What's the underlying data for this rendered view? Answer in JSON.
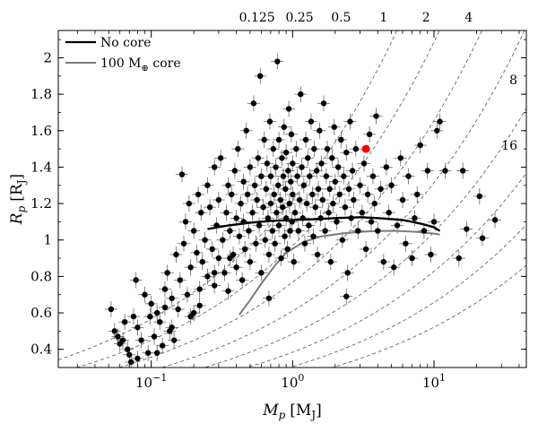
{
  "chart_data": {
    "type": "scatter",
    "xlabel": {
      "symbol": "M",
      "sub": "p",
      "unit": "[M",
      "unit_sub": "J",
      "unit_end": "]"
    },
    "ylabel": {
      "symbol": "R",
      "sub": "p",
      "unit": "[R",
      "unit_sub": "J",
      "unit_end": "]"
    },
    "x_scale": "log",
    "xlim": [
      0.022,
      45
    ],
    "ylim": [
      0.3,
      2.15
    ],
    "x_ticks": [
      {
        "value": 0.1,
        "base": "10",
        "exp": "−1"
      },
      {
        "value": 1,
        "base": "10",
        "exp": "0"
      },
      {
        "value": 10,
        "base": "10",
        "exp": "1"
      }
    ],
    "y_ticks": [
      0.4,
      0.6,
      0.8,
      1,
      1.2,
      1.4,
      1.6,
      1.8,
      2
    ],
    "y_tick_labels": [
      "0.4",
      "0.6",
      "0.8",
      "1",
      "1.2",
      "1.4",
      "1.6",
      "1.8",
      "2"
    ],
    "grid": false,
    "legend": {
      "position": "top-left",
      "entries": [
        {
          "label": "No core",
          "color": "#000000"
        },
        {
          "label_main": "100 M",
          "label_sub": "⊕",
          "label_end": " core",
          "color": "#7a7a7a"
        }
      ]
    },
    "density_curves": [
      {
        "label": "0.125",
        "k": 0.55,
        "label_pos": "top",
        "label_x": 0.56
      },
      {
        "label": "0.25",
        "k": 1.1,
        "label_pos": "top",
        "label_x": 1.12
      },
      {
        "label": "0.5",
        "k": 2.2,
        "label_pos": "top",
        "label_x": 2.2
      },
      {
        "label": "1",
        "k": 4.4,
        "label_pos": "top",
        "label_x": 4.4
      },
      {
        "label": "2",
        "k": 8.8,
        "label_pos": "top",
        "label_x": 8.8
      },
      {
        "label": "4",
        "k": 17.6,
        "label_pos": "top",
        "label_x": 17.6
      },
      {
        "label": "8",
        "k": 35.2,
        "label_pos": "right",
        "label_y": 1.88
      },
      {
        "label": "16",
        "k": 70.4,
        "label_pos": "right",
        "label_y": 1.52
      }
    ],
    "model_curves": [
      {
        "name": "No core",
        "color": "#000000",
        "x": [
          0.25,
          0.35,
          0.5,
          0.7,
          1.0,
          1.5,
          2.0,
          3.0,
          4.0,
          5.0,
          6.0,
          7.0,
          8.0,
          9.0,
          10.0,
          11.0
        ],
        "y": [
          1.06,
          1.08,
          1.095,
          1.105,
          1.11,
          1.115,
          1.12,
          1.125,
          1.12,
          1.115,
          1.11,
          1.1,
          1.09,
          1.08,
          1.07,
          1.05
        ]
      },
      {
        "name": "100 M⊕ core",
        "color": "#7a7a7a",
        "x": [
          0.42,
          0.5,
          0.6,
          0.75,
          0.9,
          1.2,
          1.6,
          2.2,
          3.0,
          4.0,
          5.5,
          7.5,
          10.0,
          11.0
        ],
        "y": [
          0.59,
          0.67,
          0.76,
          0.86,
          0.93,
          0.99,
          1.02,
          1.035,
          1.045,
          1.05,
          1.05,
          1.045,
          1.035,
          1.03
        ]
      }
    ],
    "points": [
      [
        0.052,
        0.62
      ],
      [
        0.055,
        0.5
      ],
      [
        0.058,
        0.47
      ],
      [
        0.06,
        0.43
      ],
      [
        0.065,
        0.55
      ],
      [
        0.068,
        0.4
      ],
      [
        0.07,
        0.37
      ],
      [
        0.072,
        0.33
      ],
      [
        0.075,
        0.58
      ],
      [
        0.078,
        0.78
      ],
      [
        0.08,
        0.52
      ],
      [
        0.085,
        0.45
      ],
      [
        0.09,
        0.7
      ],
      [
        0.095,
        0.38
      ],
      [
        0.1,
        0.65
      ],
      [
        0.105,
        0.47
      ],
      [
        0.11,
        0.6
      ],
      [
        0.115,
        0.55
      ],
      [
        0.12,
        0.42
      ],
      [
        0.125,
        0.73
      ],
      [
        0.13,
        0.82
      ],
      [
        0.135,
        0.5
      ],
      [
        0.14,
        0.68
      ],
      [
        0.145,
        0.45
      ],
      [
        0.15,
        0.92
      ],
      [
        0.155,
        0.62
      ],
      [
        0.16,
        0.78
      ],
      [
        0.165,
        1.36
      ],
      [
        0.17,
        0.98
      ],
      [
        0.175,
        1.1
      ],
      [
        0.18,
        0.7
      ],
      [
        0.185,
        1.2
      ],
      [
        0.19,
        0.85
      ],
      [
        0.2,
        1.05
      ],
      [
        0.2,
        0.6
      ],
      [
        0.21,
        0.93
      ],
      [
        0.215,
        1.25
      ],
      [
        0.22,
        0.73
      ],
      [
        0.225,
        1.15
      ],
      [
        0.23,
        0.88
      ],
      [
        0.24,
        1.0
      ],
      [
        0.25,
        1.3
      ],
      [
        0.25,
        0.8
      ],
      [
        0.26,
        1.18
      ],
      [
        0.27,
        0.95
      ],
      [
        0.28,
        1.4
      ],
      [
        0.28,
        0.75
      ],
      [
        0.29,
        1.08
      ],
      [
        0.3,
        1.22
      ],
      [
        0.3,
        0.9
      ],
      [
        0.31,
        1.45
      ],
      [
        0.32,
        1.0
      ],
      [
        0.33,
        0.82
      ],
      [
        0.34,
        1.15
      ],
      [
        0.35,
        1.3
      ],
      [
        0.35,
        0.72
      ],
      [
        0.36,
        1.05
      ],
      [
        0.37,
        1.25
      ],
      [
        0.38,
        0.92
      ],
      [
        0.39,
        1.38
      ],
      [
        0.4,
        1.12
      ],
      [
        0.4,
        0.85
      ],
      [
        0.41,
        1.5
      ],
      [
        0.42,
        1.02
      ],
      [
        0.43,
        1.2
      ],
      [
        0.44,
        0.78
      ],
      [
        0.45,
        1.32
      ],
      [
        0.45,
        1.1
      ],
      [
        0.46,
        0.95
      ],
      [
        0.47,
        1.6
      ],
      [
        0.48,
        1.25
      ],
      [
        0.49,
        1.05
      ],
      [
        0.5,
        1.4
      ],
      [
        0.5,
        0.88
      ],
      [
        0.52,
        1.15
      ],
      [
        0.53,
        1.75
      ],
      [
        0.54,
        1.3
      ],
      [
        0.55,
        0.98
      ],
      [
        0.56,
        1.22
      ],
      [
        0.57,
        1.45
      ],
      [
        0.58,
        1.08
      ],
      [
        0.59,
        1.9
      ],
      [
        0.6,
        1.35
      ],
      [
        0.6,
        0.82
      ],
      [
        0.62,
        1.18
      ],
      [
        0.63,
        1.55
      ],
      [
        0.64,
        1.0
      ],
      [
        0.65,
        1.28
      ],
      [
        0.66,
        1.42
      ],
      [
        0.67,
        1.12
      ],
      [
        0.68,
        0.92
      ],
      [
        0.69,
        1.65
      ],
      [
        0.7,
        1.2
      ],
      [
        0.7,
        1.35
      ],
      [
        0.72,
        1.05
      ],
      [
        0.73,
        1.5
      ],
      [
        0.74,
        1.25
      ],
      [
        0.75,
        0.98
      ],
      [
        0.76,
        1.4
      ],
      [
        0.77,
        1.15
      ],
      [
        0.78,
        1.98
      ],
      [
        0.79,
        1.3
      ],
      [
        0.8,
        1.08
      ],
      [
        0.8,
        1.55
      ],
      [
        0.82,
        1.22
      ],
      [
        0.83,
        0.9
      ],
      [
        0.84,
        1.45
      ],
      [
        0.85,
        1.18
      ],
      [
        0.86,
        1.35
      ],
      [
        0.87,
        1.62
      ],
      [
        0.88,
        1.02
      ],
      [
        0.89,
        1.28
      ],
      [
        0.9,
        1.48
      ],
      [
        0.9,
        1.12
      ],
      [
        0.92,
        0.95
      ],
      [
        0.93,
        1.38
      ],
      [
        0.94,
        1.72
      ],
      [
        0.95,
        1.2
      ],
      [
        0.96,
        1.05
      ],
      [
        0.97,
        1.32
      ],
      [
        0.98,
        1.58
      ],
      [
        0.99,
        1.1
      ],
      [
        1.0,
        1.42
      ],
      [
        1.0,
        1.25
      ],
      [
        1.02,
        0.88
      ],
      [
        1.04,
        1.15
      ],
      [
        1.06,
        1.5
      ],
      [
        1.08,
        1.35
      ],
      [
        1.1,
        1.05
      ],
      [
        1.12,
        1.22
      ],
      [
        1.14,
        1.8
      ],
      [
        1.16,
        1.4
      ],
      [
        1.18,
        1.12
      ],
      [
        1.2,
        1.3
      ],
      [
        1.22,
        0.98
      ],
      [
        1.24,
        1.55
      ],
      [
        1.26,
        1.2
      ],
      [
        1.28,
        1.45
      ],
      [
        1.3,
        1.08
      ],
      [
        1.32,
        1.35
      ],
      [
        1.35,
        1.65
      ],
      [
        1.38,
        1.25
      ],
      [
        1.4,
        1.02
      ],
      [
        1.42,
        1.5
      ],
      [
        1.45,
        1.18
      ],
      [
        1.48,
        1.38
      ],
      [
        1.5,
        0.92
      ],
      [
        1.52,
        1.28
      ],
      [
        1.55,
        1.6
      ],
      [
        1.58,
        1.12
      ],
      [
        1.6,
        1.42
      ],
      [
        1.63,
        1.22
      ],
      [
        1.66,
        1.75
      ],
      [
        1.7,
        1.05
      ],
      [
        1.73,
        1.35
      ],
      [
        1.76,
        1.5
      ],
      [
        1.8,
        1.15
      ],
      [
        1.83,
        1.28
      ],
      [
        1.86,
        0.88
      ],
      [
        1.9,
        1.45
      ],
      [
        1.93,
        1.2
      ],
      [
        1.97,
        1.62
      ],
      [
        2.0,
        1.32
      ],
      [
        2.05,
        1.1
      ],
      [
        2.1,
        1.4
      ],
      [
        2.15,
        1.25
      ],
      [
        2.2,
        1.55
      ],
      [
        2.25,
        1.0
      ],
      [
        2.3,
        1.35
      ],
      [
        2.35,
        1.18
      ],
      [
        2.4,
        1.48
      ],
      [
        2.45,
        0.82
      ],
      [
        2.5,
        1.28
      ],
      [
        2.55,
        1.65
      ],
      [
        2.6,
        1.12
      ],
      [
        2.65,
        1.38
      ],
      [
        2.7,
        1.22
      ],
      [
        2.8,
        1.5
      ],
      [
        2.9,
        1.05
      ],
      [
        3.0,
        1.3
      ],
      [
        3.1,
        1.15
      ],
      [
        3.2,
        1.42
      ],
      [
        3.3,
        0.95
      ],
      [
        3.4,
        1.25
      ],
      [
        3.5,
        1.58
      ],
      [
        3.6,
        1.1
      ],
      [
        3.7,
        1.35
      ],
      [
        3.8,
        1.2
      ],
      [
        3.9,
        1.68
      ],
      [
        4.0,
        1.05
      ],
      [
        4.2,
        1.28
      ],
      [
        4.4,
        0.88
      ],
      [
        4.6,
        1.4
      ],
      [
        4.8,
        1.15
      ],
      [
        5.0,
        1.3
      ],
      [
        5.2,
        0.85
      ],
      [
        5.5,
        1.08
      ],
      [
        5.8,
        1.45
      ],
      [
        6.0,
        1.22
      ],
      [
        6.3,
        0.98
      ],
      [
        6.6,
        1.35
      ],
      [
        7.0,
        0.9
      ],
      [
        7.3,
        1.12
      ],
      [
        7.6,
        1.25
      ],
      [
        8.0,
        1.52
      ],
      [
        8.5,
        1.05
      ],
      [
        9.0,
        1.38
      ],
      [
        9.5,
        0.92
      ],
      [
        10.0,
        1.1
      ],
      [
        10.5,
        1.6
      ],
      [
        11.0,
        1.65
      ],
      [
        12.0,
        1.38
      ],
      [
        16.0,
        1.38
      ],
      [
        21.0,
        1.24
      ],
      [
        22.0,
        1.01
      ],
      [
        27.0,
        1.11
      ],
      [
        15.0,
        0.9
      ],
      [
        17.0,
        1.06
      ],
      [
        2.4,
        0.69
      ],
      [
        0.68,
        0.68
      ],
      [
        0.36,
        0.9
      ],
      [
        0.28,
        0.82
      ],
      [
        0.22,
        0.64
      ],
      [
        0.19,
        0.58
      ],
      [
        0.14,
        0.52
      ],
      [
        0.11,
        0.38
      ],
      [
        0.08,
        0.35
      ],
      [
        0.063,
        0.45
      ],
      [
        0.098,
        0.58
      ],
      [
        0.125,
        0.63
      ]
    ],
    "highlight_point": {
      "x": 3.3,
      "y": 1.5,
      "color": "#ff0000"
    }
  }
}
